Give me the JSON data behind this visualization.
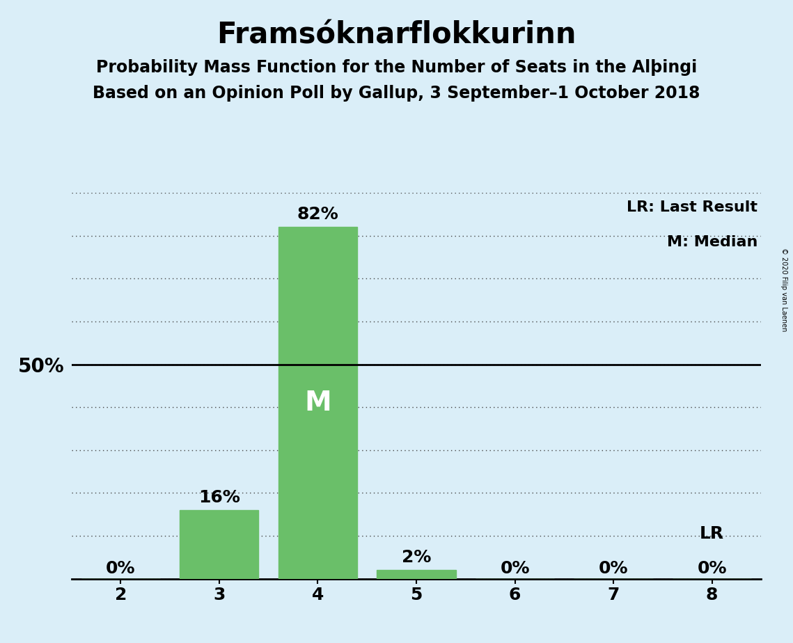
{
  "title": "Framsóknarflokkurinn",
  "subtitle1": "Probability Mass Function for the Number of Seats in the Alþingi",
  "subtitle2": "Based on an Opinion Poll by Gallup, 3 September–1 October 2018",
  "copyright": "© 2020 Filip van Laenen",
  "categories": [
    2,
    3,
    4,
    5,
    6,
    7,
    8
  ],
  "values": [
    0,
    16,
    82,
    2,
    0,
    0,
    0
  ],
  "bar_color": "#6abf69",
  "background_color": "#daeef8",
  "ylim": [
    0,
    90
  ],
  "yticks": [
    0,
    10,
    20,
    30,
    40,
    50,
    60,
    70,
    80,
    90
  ],
  "ylabel_50": "50%",
  "median_seat": 4,
  "lr_seat": 8,
  "lr_label": "LR",
  "legend_lr": "LR: Last Result",
  "legend_m": "M: Median",
  "m_label": "M",
  "title_fontsize": 30,
  "subtitle_fontsize": 17,
  "bar_label_fontsize": 18,
  "axis_tick_fontsize": 18,
  "ylabel_fontsize": 20,
  "legend_fontsize": 16
}
